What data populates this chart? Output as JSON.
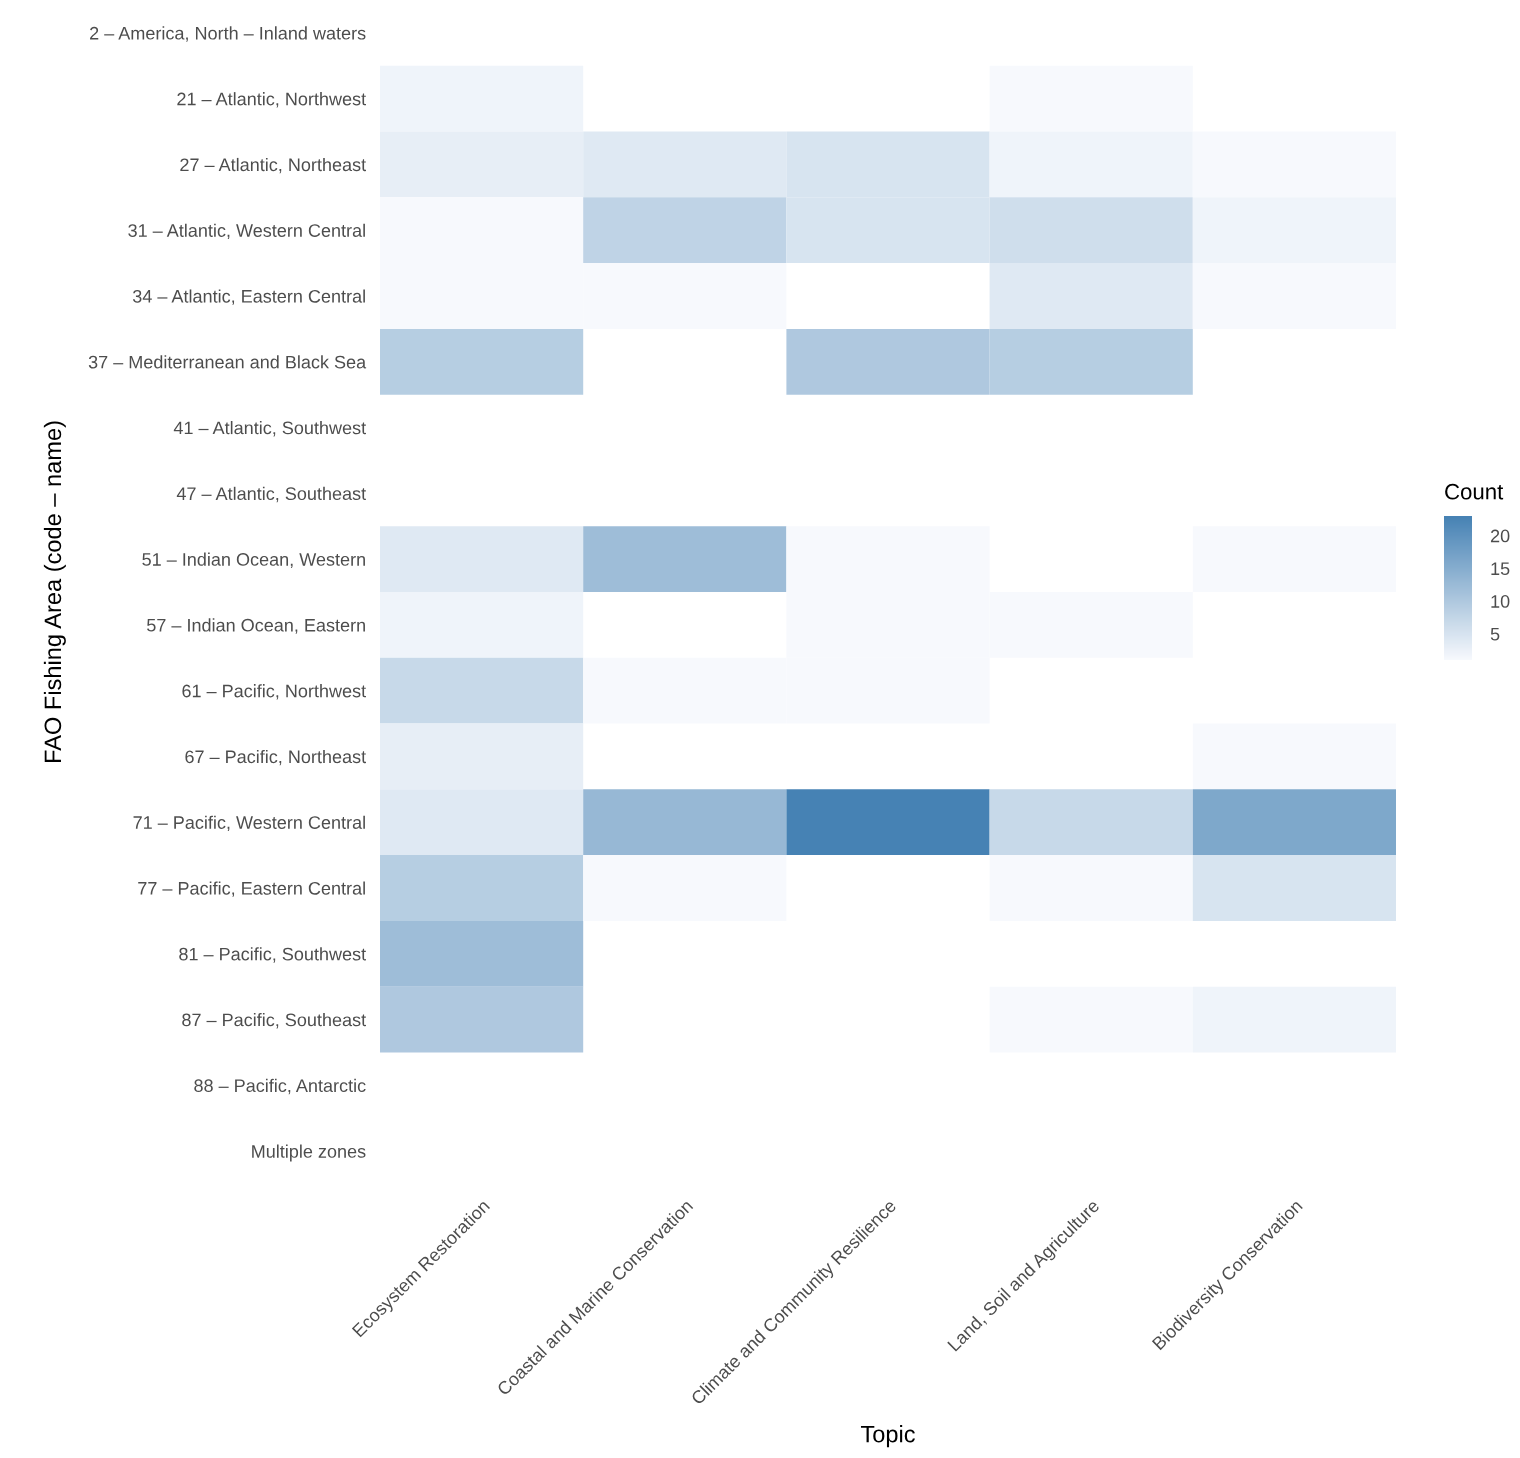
{
  "chart_data": {
    "type": "heatmap",
    "xlabel": "Topic",
    "ylabel": "FAO Fishing Area (code – name)",
    "clabel": "Count",
    "categories": [
      "Ecosystem Restoration",
      "Coastal and Marine Conservation",
      "Climate and Community Resilience",
      "Land, Soil and Agriculture",
      "Biodiversity Conservation"
    ],
    "y_categories": [
      "2 – America, North – Inland waters",
      "21 – Atlantic, Northwest",
      "27 – Atlantic, Northeast",
      "31 – Atlantic, Western Central",
      "34 – Atlantic, Eastern Central",
      "37 – Mediterranean and Black Sea",
      "41 – Atlantic, Southwest",
      "47 – Atlantic, Southeast",
      "51 – Indian Ocean, Western",
      "57 – Indian Ocean, Eastern",
      "61 – Pacific, Northwest",
      "67 – Pacific, Northeast",
      "71 – Pacific, Western Central",
      "77 – Pacific, Eastern Central",
      "81 – Pacific, Southwest",
      "87 – Pacific, Southeast",
      "88 – Pacific, Antarctic",
      "Multiple zones"
    ],
    "cells": [
      [
        null,
        null,
        null,
        null,
        null
      ],
      [
        2,
        null,
        null,
        1,
        null
      ],
      [
        3,
        4,
        5,
        2,
        1
      ],
      [
        1,
        8,
        5,
        6,
        2
      ],
      [
        1,
        1,
        null,
        4,
        1
      ],
      [
        9,
        null,
        10,
        9,
        null
      ],
      [
        null,
        null,
        null,
        null,
        null
      ],
      [
        null,
        null,
        null,
        null,
        null
      ],
      [
        4,
        12,
        1,
        null,
        1
      ],
      [
        2,
        null,
        1,
        1,
        null
      ],
      [
        7,
        1,
        1,
        null,
        null
      ],
      [
        3,
        null,
        null,
        null,
        1
      ],
      [
        4,
        13,
        23,
        7,
        16
      ],
      [
        9,
        1,
        null,
        1,
        5
      ],
      [
        12,
        null,
        null,
        null,
        null
      ],
      [
        10,
        null,
        null,
        1,
        2
      ],
      [
        null,
        null,
        null,
        null,
        null
      ],
      [
        null,
        null,
        null,
        null,
        null
      ]
    ],
    "clim": [
      1,
      23
    ],
    "cticks": [
      5,
      10,
      15,
      20
    ],
    "grid": false
  }
}
